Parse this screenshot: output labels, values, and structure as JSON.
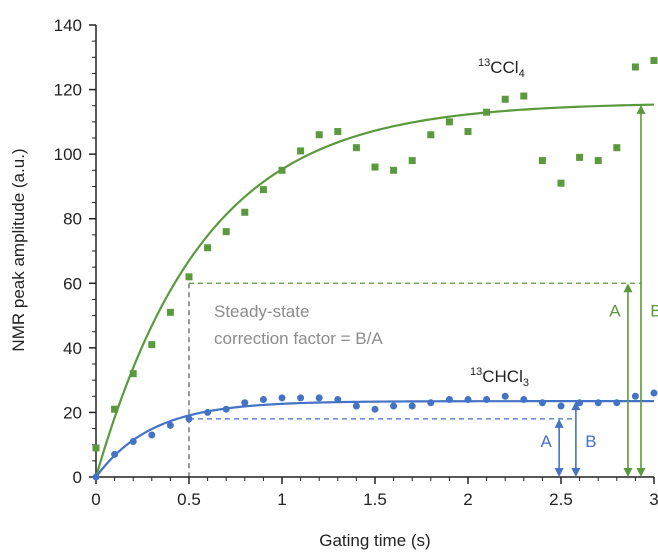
{
  "chart_data": {
    "type": "scatter",
    "xlabel": "Gating time (s)",
    "ylabel": "NMR peak amplitude (a.u.)",
    "xlim": [
      0,
      3
    ],
    "ylim": [
      0,
      140
    ],
    "xticks": [
      0,
      0.5,
      1,
      1.5,
      2,
      2.5,
      3
    ],
    "yticks": [
      0,
      20,
      40,
      60,
      80,
      100,
      120,
      140
    ],
    "xtick_labels": [
      "0",
      "0.5",
      "1",
      "1.5",
      "2",
      "2.5",
      "3"
    ],
    "ytick_labels": [
      "0",
      "20",
      "40",
      "60",
      "80",
      "100",
      "120",
      "140"
    ],
    "grid": false,
    "annotation": {
      "line1": "Steady-state",
      "line2": "correction factor = B/A",
      "label_a": "A",
      "label_b": "B"
    },
    "series": [
      {
        "name_sup": "13",
        "name_main": "CCl",
        "name_sub": "4",
        "color": "#5a9a3c",
        "marker": "square",
        "points": [
          [
            0,
            9
          ],
          [
            0.1,
            21
          ],
          [
            0.2,
            32
          ],
          [
            0.3,
            41
          ],
          [
            0.4,
            51
          ],
          [
            0.5,
            62
          ],
          [
            0.6,
            71
          ],
          [
            0.7,
            76
          ],
          [
            0.8,
            82
          ],
          [
            0.9,
            89
          ],
          [
            1.0,
            95
          ],
          [
            1.1,
            101
          ],
          [
            1.2,
            106
          ],
          [
            1.3,
            107
          ],
          [
            1.4,
            102
          ],
          [
            1.5,
            96
          ],
          [
            1.6,
            95
          ],
          [
            1.7,
            98
          ],
          [
            1.8,
            106
          ],
          [
            1.9,
            110
          ],
          [
            2.0,
            107
          ],
          [
            2.1,
            113
          ],
          [
            2.2,
            117
          ],
          [
            2.3,
            118
          ],
          [
            2.4,
            98
          ],
          [
            2.5,
            91
          ],
          [
            2.6,
            99
          ],
          [
            2.7,
            98
          ],
          [
            2.8,
            102
          ],
          [
            2.9,
            127
          ],
          [
            3.0,
            129
          ]
        ],
        "fit": {
          "amplitude": 116,
          "tau": 0.58
        },
        "marker_time": 0.5,
        "steady_value": 60,
        "arrow_a_x": 2.86,
        "arrow_b_x": 2.93
      },
      {
        "name_sup": "13",
        "name_main": "CHCl",
        "name_sub": "3",
        "color": "#4472c4",
        "marker": "circle",
        "points": [
          [
            0,
            0
          ],
          [
            0.1,
            7
          ],
          [
            0.2,
            11
          ],
          [
            0.3,
            13
          ],
          [
            0.4,
            16
          ],
          [
            0.5,
            18
          ],
          [
            0.6,
            20
          ],
          [
            0.7,
            21
          ],
          [
            0.8,
            23
          ],
          [
            0.9,
            24
          ],
          [
            1.0,
            24.5
          ],
          [
            1.1,
            24.5
          ],
          [
            1.2,
            24.5
          ],
          [
            1.3,
            24
          ],
          [
            1.4,
            22
          ],
          [
            1.5,
            21
          ],
          [
            1.6,
            22
          ],
          [
            1.7,
            22
          ],
          [
            1.8,
            23
          ],
          [
            1.9,
            24
          ],
          [
            2.0,
            24
          ],
          [
            2.1,
            24
          ],
          [
            2.2,
            25
          ],
          [
            2.3,
            24
          ],
          [
            2.4,
            23
          ],
          [
            2.5,
            22
          ],
          [
            2.6,
            23
          ],
          [
            2.7,
            23
          ],
          [
            2.8,
            23
          ],
          [
            2.9,
            25
          ],
          [
            3.0,
            26
          ]
        ],
        "fit": {
          "amplitude": 23.5,
          "tau": 0.3
        },
        "marker_time": 0.5,
        "steady_value": 18,
        "arrow_a_x": 2.49,
        "arrow_b_x": 2.58
      }
    ]
  }
}
